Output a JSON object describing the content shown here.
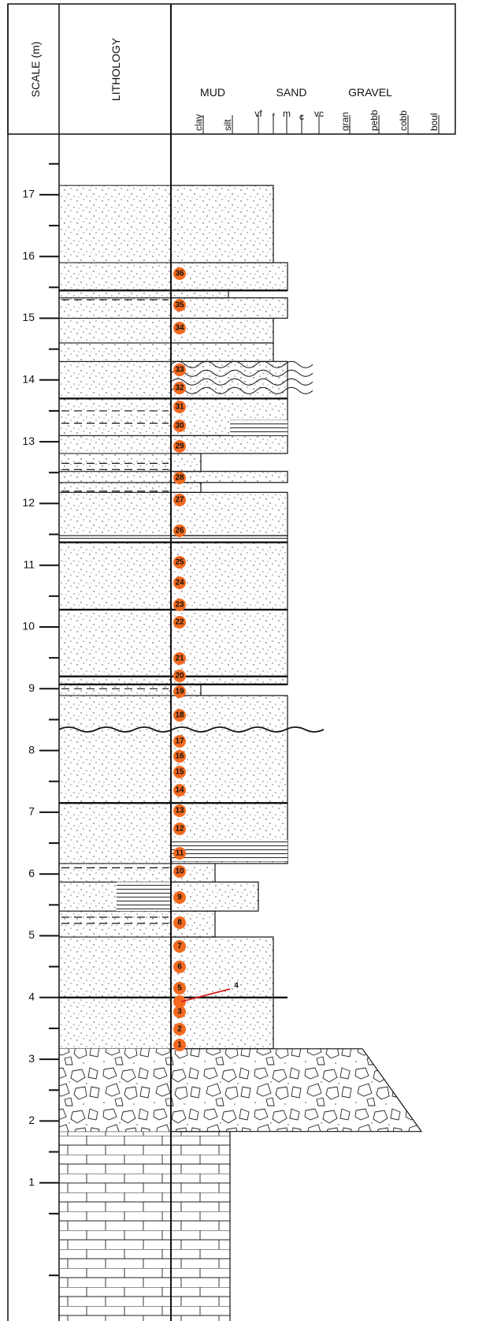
{
  "header": {
    "scale_label": "SCALE (m)",
    "lithology_label": "LITHOLOGY",
    "groups": [
      "MUD",
      "SAND",
      "GRAVEL"
    ],
    "grain_sizes": [
      "clay",
      "silt",
      "vf",
      "f",
      "m",
      "c",
      "vc",
      "gran",
      "pebb",
      "cobb",
      "boul"
    ]
  },
  "scale": {
    "ticks": [
      1,
      2,
      3,
      4,
      5,
      6,
      7,
      8,
      9,
      10,
      11,
      12,
      13,
      14,
      15,
      16,
      17
    ]
  },
  "samples": [
    1,
    2,
    3,
    4,
    5,
    6,
    7,
    8,
    9,
    10,
    11,
    12,
    13,
    14,
    15,
    16,
    17,
    18,
    19,
    20,
    21,
    22,
    23,
    24,
    25,
    26,
    27,
    28,
    29,
    30,
    31,
    32,
    33,
    34,
    35,
    36
  ]
}
